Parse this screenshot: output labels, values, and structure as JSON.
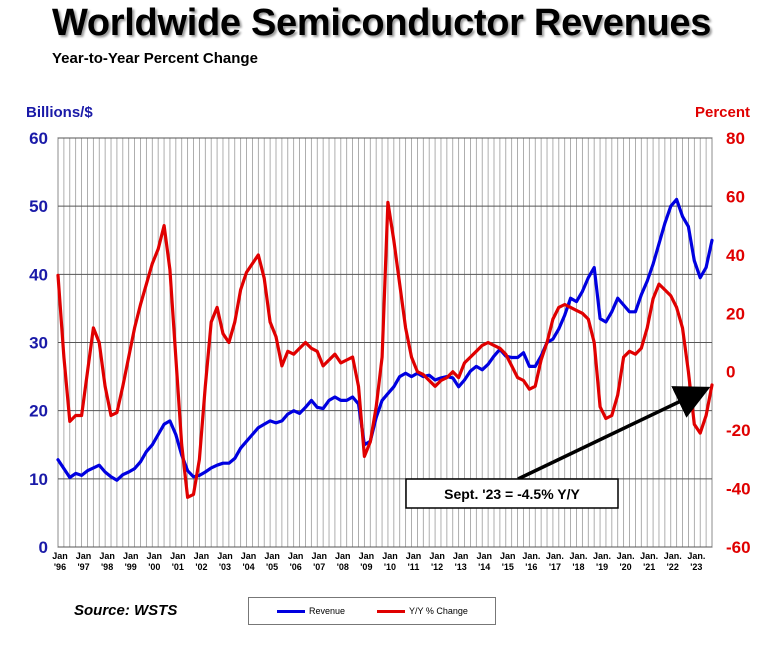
{
  "title": "Worldwide Semiconductor Revenues",
  "subtitle": "Year-to-Year Percent Change",
  "source": "Source: WSTS",
  "chart_data": {
    "type": "line",
    "title": "Worldwide Semiconductor Revenues",
    "subtitle": "Year-to-Year Percent Change",
    "y_left_label": "Billions/$",
    "y_right_label": "Percent",
    "y_left_range": [
      0,
      60
    ],
    "y_left_ticks": [
      0,
      10,
      20,
      30,
      40,
      50,
      60
    ],
    "y_right_range": [
      -60,
      80
    ],
    "y_right_ticks": [
      -60,
      -40,
      -20,
      0,
      20,
      40,
      60,
      80
    ],
    "x_range": [
      1996,
      2023.75
    ],
    "x_ticks": [
      {
        "top": "Jan",
        "bottom": "'96"
      },
      {
        "top": "Jan",
        "bottom": "'97"
      },
      {
        "top": "Jan",
        "bottom": "'98"
      },
      {
        "top": "Jan",
        "bottom": "'99"
      },
      {
        "top": "Jan",
        "bottom": "'00"
      },
      {
        "top": "Jan",
        "bottom": "'01"
      },
      {
        "top": "Jan",
        "bottom": "'02"
      },
      {
        "top": "Jan",
        "bottom": "'03"
      },
      {
        "top": "Jan",
        "bottom": "'04"
      },
      {
        "top": "Jan",
        "bottom": "'05"
      },
      {
        "top": "Jan",
        "bottom": "'06"
      },
      {
        "top": "Jan",
        "bottom": "'07"
      },
      {
        "top": "Jan",
        "bottom": "'08"
      },
      {
        "top": "Jan",
        "bottom": "'09"
      },
      {
        "top": "Jan",
        "bottom": "'10"
      },
      {
        "top": "Jan",
        "bottom": "'11"
      },
      {
        "top": "Jan",
        "bottom": "'12"
      },
      {
        "top": "Jan",
        "bottom": "'13"
      },
      {
        "top": "Jan",
        "bottom": "'14"
      },
      {
        "top": "Jan",
        "bottom": "'15"
      },
      {
        "top": "Jan.",
        "bottom": "'16"
      },
      {
        "top": "Jan.",
        "bottom": "'17"
      },
      {
        "top": "Jan.",
        "bottom": "'18"
      },
      {
        "top": "Jan.",
        "bottom": "'19"
      },
      {
        "top": "Jan.",
        "bottom": "'20"
      },
      {
        "top": "Jan.",
        "bottom": "'21"
      },
      {
        "top": "Jan.",
        "bottom": "'22"
      },
      {
        "top": "Jan.",
        "bottom": "'23"
      }
    ],
    "grid": true,
    "legend_position": "bottom",
    "series": [
      {
        "name": "Revenue",
        "axis": "left",
        "color": "#0000e0",
        "points": [
          [
            1996.0,
            12.8
          ],
          [
            1996.25,
            11.5
          ],
          [
            1996.5,
            10.2
          ],
          [
            1996.75,
            10.8
          ],
          [
            1997.0,
            10.5
          ],
          [
            1997.25,
            11.2
          ],
          [
            1997.5,
            11.6
          ],
          [
            1997.75,
            12.0
          ],
          [
            1998.0,
            11.0
          ],
          [
            1998.25,
            10.3
          ],
          [
            1998.5,
            9.8
          ],
          [
            1998.75,
            10.6
          ],
          [
            1999.0,
            11.0
          ],
          [
            1999.25,
            11.5
          ],
          [
            1999.5,
            12.5
          ],
          [
            1999.75,
            14.0
          ],
          [
            2000.0,
            15.0
          ],
          [
            2000.25,
            16.5
          ],
          [
            2000.5,
            18.0
          ],
          [
            2000.75,
            18.5
          ],
          [
            2001.0,
            16.5
          ],
          [
            2001.25,
            13.5
          ],
          [
            2001.5,
            11.2
          ],
          [
            2001.75,
            10.3
          ],
          [
            2002.0,
            10.5
          ],
          [
            2002.25,
            11.0
          ],
          [
            2002.5,
            11.6
          ],
          [
            2002.75,
            12.0
          ],
          [
            2003.0,
            12.3
          ],
          [
            2003.25,
            12.3
          ],
          [
            2003.5,
            13.0
          ],
          [
            2003.75,
            14.5
          ],
          [
            2004.0,
            15.5
          ],
          [
            2004.25,
            16.5
          ],
          [
            2004.5,
            17.5
          ],
          [
            2004.75,
            18.0
          ],
          [
            2005.0,
            18.5
          ],
          [
            2005.25,
            18.2
          ],
          [
            2005.5,
            18.5
          ],
          [
            2005.75,
            19.5
          ],
          [
            2006.0,
            20.0
          ],
          [
            2006.25,
            19.6
          ],
          [
            2006.5,
            20.5
          ],
          [
            2006.75,
            21.5
          ],
          [
            2007.0,
            20.5
          ],
          [
            2007.25,
            20.3
          ],
          [
            2007.5,
            21.5
          ],
          [
            2007.75,
            22.0
          ],
          [
            2008.0,
            21.5
          ],
          [
            2008.25,
            21.5
          ],
          [
            2008.5,
            22.0
          ],
          [
            2008.75,
            21.0
          ],
          [
            2009.0,
            15.0
          ],
          [
            2009.25,
            15.5
          ],
          [
            2009.5,
            19.0
          ],
          [
            2009.75,
            21.5
          ],
          [
            2010.0,
            22.5
          ],
          [
            2010.25,
            23.5
          ],
          [
            2010.5,
            25.0
          ],
          [
            2010.75,
            25.5
          ],
          [
            2011.0,
            25.0
          ],
          [
            2011.25,
            25.5
          ],
          [
            2011.5,
            25.0
          ],
          [
            2011.75,
            25.2
          ],
          [
            2012.0,
            24.5
          ],
          [
            2012.25,
            24.8
          ],
          [
            2012.5,
            25.0
          ],
          [
            2012.75,
            24.8
          ],
          [
            2013.0,
            23.5
          ],
          [
            2013.25,
            24.5
          ],
          [
            2013.5,
            25.8
          ],
          [
            2013.75,
            26.5
          ],
          [
            2014.0,
            26.0
          ],
          [
            2014.25,
            26.8
          ],
          [
            2014.5,
            28.0
          ],
          [
            2014.75,
            29.0
          ],
          [
            2015.0,
            28.0
          ],
          [
            2015.25,
            27.8
          ],
          [
            2015.5,
            27.8
          ],
          [
            2015.75,
            28.5
          ],
          [
            2016.0,
            26.5
          ],
          [
            2016.25,
            26.5
          ],
          [
            2016.5,
            28.0
          ],
          [
            2016.75,
            30.0
          ],
          [
            2017.0,
            30.5
          ],
          [
            2017.25,
            32.0
          ],
          [
            2017.5,
            34.0
          ],
          [
            2017.75,
            36.5
          ],
          [
            2018.0,
            36.0
          ],
          [
            2018.25,
            37.5
          ],
          [
            2018.5,
            39.5
          ],
          [
            2018.75,
            41.0
          ],
          [
            2019.0,
            33.5
          ],
          [
            2019.25,
            33.0
          ],
          [
            2019.5,
            34.5
          ],
          [
            2019.75,
            36.5
          ],
          [
            2020.0,
            35.5
          ],
          [
            2020.25,
            34.5
          ],
          [
            2020.5,
            34.5
          ],
          [
            2020.75,
            37.0
          ],
          [
            2021.0,
            39.0
          ],
          [
            2021.25,
            41.5
          ],
          [
            2021.5,
            44.5
          ],
          [
            2021.75,
            47.5
          ],
          [
            2022.0,
            50.0
          ],
          [
            2022.25,
            51.0
          ],
          [
            2022.5,
            48.5
          ],
          [
            2022.75,
            47.0
          ],
          [
            2023.0,
            42.0
          ],
          [
            2023.25,
            39.5
          ],
          [
            2023.5,
            41.0
          ],
          [
            2023.75,
            45.0
          ]
        ]
      },
      {
        "name": "Y/Y % Change",
        "axis": "right",
        "color": "#e00000",
        "points": [
          [
            1996.0,
            33
          ],
          [
            1996.25,
            5
          ],
          [
            1996.5,
            -17
          ],
          [
            1996.75,
            -15
          ],
          [
            1997.0,
            -15
          ],
          [
            1997.25,
            0
          ],
          [
            1997.5,
            15
          ],
          [
            1997.75,
            10
          ],
          [
            1998.0,
            -5
          ],
          [
            1998.25,
            -15
          ],
          [
            1998.5,
            -14
          ],
          [
            1998.75,
            -5
          ],
          [
            1999.0,
            5
          ],
          [
            1999.25,
            15
          ],
          [
            1999.5,
            23
          ],
          [
            1999.75,
            30
          ],
          [
            2000.0,
            37
          ],
          [
            2000.25,
            42
          ],
          [
            2000.5,
            50
          ],
          [
            2000.75,
            35
          ],
          [
            2001.0,
            5
          ],
          [
            2001.25,
            -25
          ],
          [
            2001.5,
            -43
          ],
          [
            2001.75,
            -42
          ],
          [
            2002.0,
            -30
          ],
          [
            2002.25,
            -5
          ],
          [
            2002.5,
            17
          ],
          [
            2002.75,
            22
          ],
          [
            2003.0,
            13
          ],
          [
            2003.25,
            10
          ],
          [
            2003.5,
            17
          ],
          [
            2003.75,
            28
          ],
          [
            2004.0,
            34
          ],
          [
            2004.25,
            37
          ],
          [
            2004.5,
            40
          ],
          [
            2004.75,
            32
          ],
          [
            2005.0,
            17
          ],
          [
            2005.25,
            12
          ],
          [
            2005.5,
            2
          ],
          [
            2005.75,
            7
          ],
          [
            2006.0,
            6
          ],
          [
            2006.25,
            8
          ],
          [
            2006.5,
            10
          ],
          [
            2006.75,
            8
          ],
          [
            2007.0,
            7
          ],
          [
            2007.25,
            2
          ],
          [
            2007.5,
            4
          ],
          [
            2007.75,
            6
          ],
          [
            2008.0,
            3
          ],
          [
            2008.25,
            4
          ],
          [
            2008.5,
            5
          ],
          [
            2008.75,
            -5
          ],
          [
            2009.0,
            -29
          ],
          [
            2009.25,
            -24
          ],
          [
            2009.5,
            -12
          ],
          [
            2009.75,
            5
          ],
          [
            2010.0,
            58
          ],
          [
            2010.25,
            45
          ],
          [
            2010.5,
            30
          ],
          [
            2010.75,
            15
          ],
          [
            2011.0,
            5
          ],
          [
            2011.25,
            0
          ],
          [
            2011.5,
            -1
          ],
          [
            2011.75,
            -3
          ],
          [
            2012.0,
            -5
          ],
          [
            2012.25,
            -3
          ],
          [
            2012.5,
            -2
          ],
          [
            2012.75,
            0
          ],
          [
            2013.0,
            -2
          ],
          [
            2013.25,
            3
          ],
          [
            2013.5,
            5
          ],
          [
            2013.75,
            7
          ],
          [
            2014.0,
            9
          ],
          [
            2014.25,
            10
          ],
          [
            2014.5,
            9
          ],
          [
            2014.75,
            8
          ],
          [
            2015.0,
            6
          ],
          [
            2015.25,
            2
          ],
          [
            2015.5,
            -2
          ],
          [
            2015.75,
            -3
          ],
          [
            2016.0,
            -6
          ],
          [
            2016.25,
            -5
          ],
          [
            2016.5,
            4
          ],
          [
            2016.75,
            10
          ],
          [
            2017.0,
            18
          ],
          [
            2017.25,
            22
          ],
          [
            2017.5,
            23
          ],
          [
            2017.75,
            22
          ],
          [
            2018.0,
            21
          ],
          [
            2018.25,
            20
          ],
          [
            2018.5,
            18
          ],
          [
            2018.75,
            10
          ],
          [
            2019.0,
            -12
          ],
          [
            2019.25,
            -16
          ],
          [
            2019.5,
            -15
          ],
          [
            2019.75,
            -8
          ],
          [
            2020.0,
            5
          ],
          [
            2020.25,
            7
          ],
          [
            2020.5,
            6
          ],
          [
            2020.75,
            8
          ],
          [
            2021.0,
            15
          ],
          [
            2021.25,
            25
          ],
          [
            2021.5,
            30
          ],
          [
            2021.75,
            28
          ],
          [
            2022.0,
            26
          ],
          [
            2022.25,
            22
          ],
          [
            2022.5,
            15
          ],
          [
            2022.75,
            0
          ],
          [
            2023.0,
            -18
          ],
          [
            2023.25,
            -21
          ],
          [
            2023.5,
            -15
          ],
          [
            2023.75,
            -4.5
          ]
        ]
      }
    ],
    "annotation": {
      "text": "Sept. '23 = -4.5% Y/Y",
      "x": 2023.67,
      "y": -4.5,
      "axis": "right"
    }
  },
  "legend": {
    "revenue_label": "Revenue",
    "yoy_label": "Y/Y % Change"
  }
}
